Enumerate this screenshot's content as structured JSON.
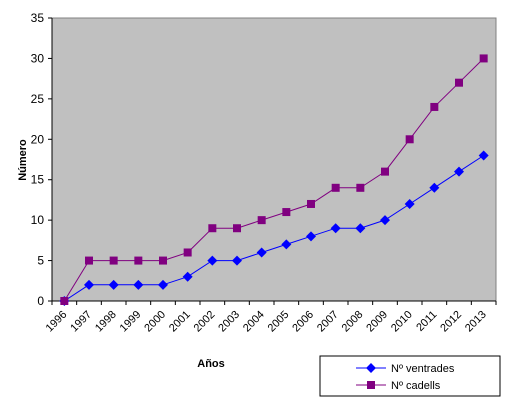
{
  "chart_data": {
    "type": "line",
    "title": "",
    "xlabel": "Años",
    "ylabel": "Número",
    "ylim": [
      0,
      35
    ],
    "yticks": [
      "0",
      "5",
      "10",
      "15",
      "20",
      "25",
      "30",
      "35"
    ],
    "categories": [
      "1996",
      "1997",
      "1998",
      "1999",
      "2000",
      "2001",
      "2002",
      "2003",
      "2004",
      "2005",
      "2006",
      "2007",
      "2008",
      "2009",
      "2010",
      "2011",
      "2012",
      "2013"
    ],
    "series": [
      {
        "name": "Nº ventrades",
        "color": "#0000ff",
        "marker": "diamond",
        "values": [
          0,
          2,
          2,
          2,
          2,
          3,
          5,
          5,
          6,
          7,
          8,
          9,
          9,
          10,
          12,
          14,
          16,
          18
        ]
      },
      {
        "name": "Nº cadells",
        "color": "#800080",
        "marker": "square",
        "values": [
          0,
          5,
          5,
          5,
          5,
          6,
          9,
          9,
          10,
          11,
          12,
          14,
          14,
          16,
          20,
          24,
          27,
          30
        ]
      }
    ],
    "grid": false,
    "plot_background": "#c0c0c0",
    "legend_position": "bottom-right"
  }
}
